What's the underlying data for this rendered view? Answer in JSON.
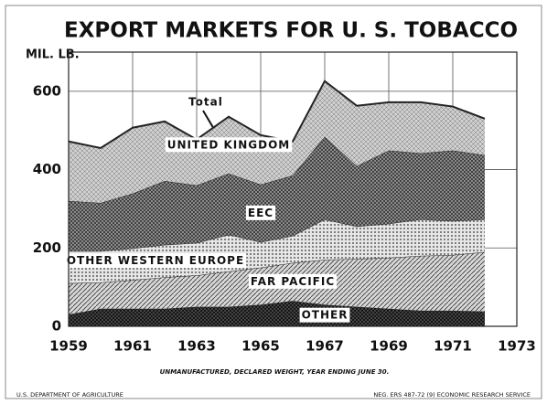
{
  "chart_data": {
    "type": "stacked_area",
    "title": "EXPORT MARKETS FOR U. S. TOBACCO",
    "ylabel": "MIL. LB.",
    "annotation": "Total",
    "note": "UNMANUFACTURED, DECLARED WEIGHT, YEAR ENDING JUNE 30.",
    "footer_left": "U.S. DEPARTMENT OF AGRICULTURE",
    "footer_right": "NEG. ERS 487-72 (9)    ECONOMIC RESEARCH SERVICE",
    "x": [
      1959,
      1960,
      1961,
      1962,
      1963,
      1964,
      1965,
      1966,
      1967,
      1968,
      1969,
      1970,
      1971,
      1972
    ],
    "xlim": [
      1959,
      1973
    ],
    "xticks": [
      1959,
      1961,
      1963,
      1965,
      1967,
      1969,
      1971,
      1973
    ],
    "ylim": [
      0,
      700
    ],
    "yticks": [
      0,
      200,
      400,
      600
    ],
    "grid": true,
    "series": [
      {
        "name": "OTHER",
        "color": "#555555",
        "values": [
          30,
          45,
          45,
          45,
          50,
          50,
          55,
          65,
          55,
          50,
          45,
          40,
          40,
          38
        ]
      },
      {
        "name": "FAR PACIFIC",
        "color": "#d8d8d8",
        "values": [
          80,
          67,
          73,
          80,
          80,
          90,
          95,
          97,
          115,
          122,
          130,
          140,
          142,
          152
        ]
      },
      {
        "name": "OTHER WESTERN EUROPE",
        "color": "#e6e6e6",
        "values": [
          82,
          80,
          81,
          83,
          83,
          94,
          65,
          69,
          103,
          83,
          87,
          93,
          87,
          83
        ]
      },
      {
        "name": "EEC",
        "color": "#9a9a9a",
        "values": [
          128,
          123,
          140,
          163,
          147,
          156,
          147,
          154,
          211,
          154,
          187,
          169,
          180,
          164
        ]
      },
      {
        "name": "UNITED KINGDOM",
        "color": "#d0d0d0",
        "values": [
          152,
          140,
          168,
          152,
          117,
          145,
          126,
          87,
          142,
          154,
          123,
          130,
          112,
          93
        ]
      }
    ]
  }
}
